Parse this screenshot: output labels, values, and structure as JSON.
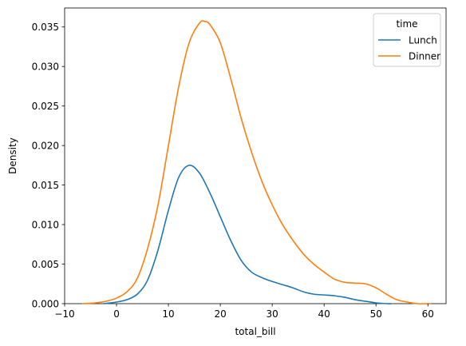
{
  "chart_data": {
    "type": "line",
    "title": "",
    "xlabel": "total_bill",
    "ylabel": "Density",
    "xlim": [
      -10,
      63.5
    ],
    "ylim": [
      0,
      0.0374
    ],
    "xticks": [
      -10,
      0,
      10,
      20,
      30,
      40,
      50,
      60
    ],
    "xtick_labels": [
      "−10",
      "0",
      "10",
      "20",
      "30",
      "40",
      "50",
      "60"
    ],
    "yticks": [
      0.0,
      0.005,
      0.01,
      0.015,
      0.02,
      0.025,
      0.03,
      0.035
    ],
    "ytick_labels": [
      "0.000",
      "0.005",
      "0.010",
      "0.015",
      "0.020",
      "0.025",
      "0.030",
      "0.035"
    ],
    "grid": false,
    "legend": {
      "title": "time",
      "placement": "top-right"
    },
    "series": [
      {
        "name": "Lunch",
        "color": "#1f77b4",
        "x": [
          -2.5,
          0,
          2,
          4,
          6,
          8,
          10,
          12,
          14,
          16,
          18,
          20,
          22,
          24,
          26,
          28,
          30,
          32,
          34,
          36,
          38,
          40,
          42,
          44,
          46,
          48,
          50,
          52,
          53
        ],
        "y": [
          0.0,
          0.0002,
          0.0005,
          0.0012,
          0.003,
          0.0068,
          0.0118,
          0.016,
          0.0175,
          0.0165,
          0.014,
          0.011,
          0.008,
          0.0055,
          0.004,
          0.0033,
          0.0028,
          0.0024,
          0.002,
          0.0015,
          0.0012,
          0.0011,
          0.001,
          0.0008,
          0.0005,
          0.0003,
          0.0001,
          0.0,
          0.0
        ]
      },
      {
        "name": "Dinner",
        "color": "#ff7f0e",
        "x": [
          -6.5,
          -4,
          -2,
          0,
          2,
          4,
          6,
          8,
          10,
          12,
          14,
          16,
          17,
          18,
          20,
          22,
          24,
          26,
          28,
          30,
          32,
          34,
          36,
          38,
          40,
          42,
          44,
          46,
          48,
          50,
          52,
          54,
          56,
          58,
          60.5
        ],
        "y": [
          0.0,
          0.0001,
          0.0003,
          0.0007,
          0.0015,
          0.0032,
          0.007,
          0.0125,
          0.02,
          0.0275,
          0.033,
          0.0355,
          0.0357,
          0.0353,
          0.033,
          0.0285,
          0.0235,
          0.0192,
          0.0155,
          0.0125,
          0.01,
          0.008,
          0.0063,
          0.005,
          0.004,
          0.0031,
          0.0027,
          0.0026,
          0.0025,
          0.002,
          0.0012,
          0.0005,
          0.0002,
          0.0,
          0.0
        ]
      }
    ]
  }
}
